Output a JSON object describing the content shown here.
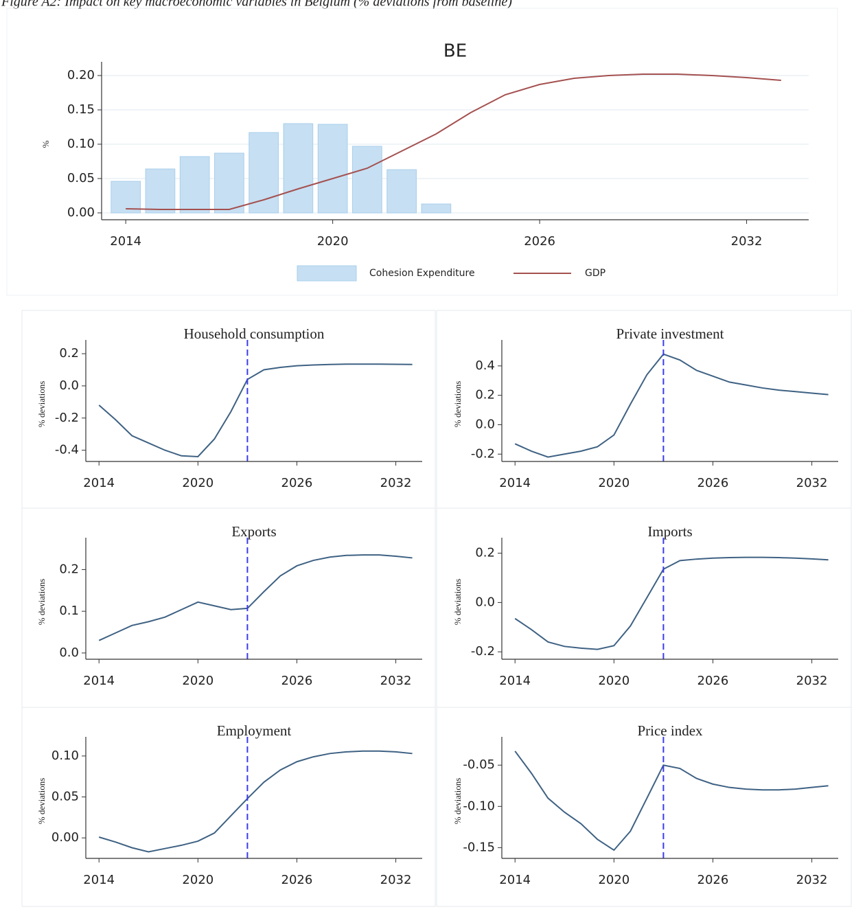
{
  "caption": "Figure A2: Impact on key macroeconomic variables in Belgium (% deviations from baseline)",
  "chart_data": [
    {
      "type": "combo",
      "title": "BE",
      "y_label": "%",
      "x": [
        2014,
        2015,
        2016,
        2017,
        2018,
        2019,
        2020,
        2021,
        2022,
        2023,
        2024,
        2025,
        2026,
        2027,
        2028,
        2029,
        2030,
        2031,
        2032,
        2033
      ],
      "series": [
        {
          "name": "Cohesion Expenditure",
          "kind": "bar",
          "color": "#c6dff2",
          "values": [
            0.046,
            0.064,
            0.082,
            0.087,
            0.117,
            0.13,
            0.129,
            0.097,
            0.063,
            0.013,
            null,
            null,
            null,
            null,
            null,
            null,
            null,
            null,
            null,
            null
          ]
        },
        {
          "name": "GDP",
          "kind": "line",
          "color": "#a4504f",
          "values": [
            0.006,
            0.005,
            0.005,
            0.005,
            0.019,
            0.035,
            0.05,
            0.065,
            0.09,
            0.115,
            0.146,
            0.172,
            0.187,
            0.196,
            0.2,
            0.202,
            0.202,
            0.2,
            0.197,
            0.193
          ]
        }
      ],
      "xlim": [
        2013.3,
        2033.8
      ],
      "xticks": [
        2014,
        2020,
        2026,
        2032
      ],
      "ylim": [
        -0.01,
        0.21
      ],
      "yticks": [
        {
          "value": 0,
          "label": "0.00"
        },
        0.05,
        {
          "value": 0.1,
          "label": "0.10"
        },
        0.15,
        {
          "value": 0.2,
          "label": "0.20"
        }
      ],
      "grid": true
    },
    {
      "type": "line",
      "title": "Household consumption",
      "y_label": "% deviations",
      "x": [
        2014,
        2015,
        2016,
        2017,
        2018,
        2019,
        2020,
        2021,
        2022,
        2023,
        2024,
        2025,
        2026,
        2027,
        2028,
        2029,
        2030,
        2031,
        2032,
        2033
      ],
      "series": [
        {
          "color": "#3e6183",
          "values": [
            -0.12,
            -0.21,
            -0.31,
            -0.355,
            -0.4,
            -0.435,
            -0.44,
            -0.33,
            -0.16,
            0.04,
            0.1,
            0.115,
            0.125,
            0.13,
            0.133,
            0.135,
            0.135,
            0.135,
            0.134,
            0.133
          ]
        }
      ],
      "xlim": [
        2013.2,
        2033.6
      ],
      "xticks": [
        2014,
        2020,
        2026,
        2032
      ],
      "ylim": [
        -0.47,
        0.243
      ],
      "yticks": [
        0.2,
        {
          "value": 0,
          "label": "0.0"
        },
        -0.2,
        -0.4
      ],
      "grid": false,
      "vline": 2023,
      "vline_color": "#3a3af0"
    },
    {
      "type": "line",
      "title": "Private investment",
      "y_label": "% deviations",
      "x": [
        2014,
        2015,
        2016,
        2017,
        2018,
        2019,
        2020,
        2021,
        2022,
        2023,
        2024,
        2025,
        2026,
        2027,
        2028,
        2029,
        2030,
        2031,
        2032,
        2033
      ],
      "series": [
        {
          "color": "#3e6183",
          "values": [
            -0.13,
            -0.18,
            -0.22,
            -0.2,
            -0.18,
            -0.15,
            -0.07,
            0.14,
            0.34,
            0.48,
            0.44,
            0.37,
            0.33,
            0.29,
            0.27,
            0.25,
            0.235,
            0.225,
            0.215,
            0.205
          ]
        }
      ],
      "xlim": [
        2013.2,
        2033.6
      ],
      "xticks": [
        2014,
        2020,
        2026,
        2032
      ],
      "ylim": [
        -0.25,
        0.53
      ],
      "yticks": [
        0.4,
        0.2,
        {
          "value": 0,
          "label": "0.0"
        },
        -0.2
      ],
      "grid": false,
      "vline": 2023,
      "vline_color": "#3a3af0"
    },
    {
      "type": "line",
      "title": "Exports",
      "y_label": "% deviations",
      "x": [
        2014,
        2015,
        2016,
        2017,
        2018,
        2019,
        2020,
        2021,
        2022,
        2023,
        2024,
        2025,
        2026,
        2027,
        2028,
        2029,
        2030,
        2031,
        2032,
        2033
      ],
      "series": [
        {
          "color": "#3e6183",
          "values": [
            0.03,
            0.048,
            0.066,
            0.075,
            0.086,
            0.104,
            0.122,
            0.113,
            0.104,
            0.107,
            0.147,
            0.185,
            0.209,
            0.222,
            0.23,
            0.234,
            0.235,
            0.235,
            0.232,
            0.228
          ]
        }
      ],
      "xlim": [
        2013.2,
        2033.6
      ],
      "xticks": [
        2014,
        2020,
        2026,
        2032
      ],
      "ylim": [
        -0.015,
        0.26
      ],
      "yticks": [
        0.2,
        0.1,
        {
          "value": 0,
          "label": "0.0"
        }
      ],
      "grid": false,
      "vline": 2023,
      "vline_color": "#3a3af0"
    },
    {
      "type": "line",
      "title": "Imports",
      "y_label": "% deviations",
      "x": [
        2014,
        2015,
        2016,
        2017,
        2018,
        2019,
        2020,
        2021,
        2022,
        2023,
        2024,
        2025,
        2026,
        2027,
        2028,
        2029,
        2030,
        2031,
        2032,
        2033
      ],
      "series": [
        {
          "color": "#3e6183",
          "values": [
            -0.065,
            -0.11,
            -0.16,
            -0.178,
            -0.185,
            -0.19,
            -0.175,
            -0.095,
            0.02,
            0.135,
            0.17,
            0.176,
            0.18,
            0.182,
            0.183,
            0.183,
            0.182,
            0.18,
            0.177,
            0.173
          ]
        }
      ],
      "xlim": [
        2013.2,
        2033.6
      ],
      "xticks": [
        2014,
        2020,
        2026,
        2032
      ],
      "ylim": [
        -0.23,
        0.235
      ],
      "yticks": [
        0.2,
        {
          "value": 0,
          "label": "0.0"
        },
        -0.2
      ],
      "grid": false,
      "vline": 2023,
      "vline_color": "#3a3af0"
    },
    {
      "type": "line",
      "title": "Employment",
      "y_label": "% deviations",
      "x": [
        2014,
        2015,
        2016,
        2017,
        2018,
        2019,
        2020,
        2021,
        2022,
        2023,
        2024,
        2025,
        2026,
        2027,
        2028,
        2029,
        2030,
        2031,
        2032,
        2033
      ],
      "series": [
        {
          "color": "#3e6183",
          "values": [
            0.001,
            -0.005,
            -0.012,
            -0.017,
            -0.013,
            -0.009,
            -0.004,
            0.006,
            0.027,
            0.048,
            0.068,
            0.083,
            0.093,
            0.099,
            0.103,
            0.105,
            0.106,
            0.106,
            0.105,
            0.103
          ]
        }
      ],
      "xlim": [
        2013.2,
        2033.6
      ],
      "xticks": [
        2014,
        2020,
        2026,
        2032
      ],
      "ylim": [
        -0.025,
        0.115
      ],
      "yticks": [
        {
          "value": 0.1,
          "label": "0.10"
        },
        0.05,
        {
          "value": 0,
          "label": "0.00"
        }
      ],
      "grid": false,
      "vline": 2023,
      "vline_color": "#3a3af0"
    },
    {
      "type": "line",
      "title": "Price index",
      "y_label": "% deviations",
      "x": [
        2014,
        2015,
        2016,
        2017,
        2018,
        2019,
        2020,
        2021,
        2022,
        2023,
        2024,
        2025,
        2026,
        2027,
        2028,
        2029,
        2030,
        2031,
        2032,
        2033
      ],
      "series": [
        {
          "color": "#3e6183",
          "values": [
            -0.033,
            -0.06,
            -0.09,
            -0.107,
            -0.121,
            -0.14,
            -0.153,
            -0.13,
            -0.09,
            -0.05,
            -0.054,
            -0.066,
            -0.073,
            -0.077,
            -0.079,
            -0.08,
            -0.08,
            -0.079,
            -0.077,
            -0.075
          ]
        }
      ],
      "xlim": [
        2013.2,
        2033.6
      ],
      "xticks": [
        2014,
        2020,
        2026,
        2032
      ],
      "ylim": [
        -0.163,
        -0.024
      ],
      "yticks": [
        -0.05,
        {
          "value": -0.1,
          "label": "-0.10"
        },
        -0.15
      ],
      "grid": false,
      "vline": 2023,
      "vline_color": "#3a3af0"
    }
  ]
}
